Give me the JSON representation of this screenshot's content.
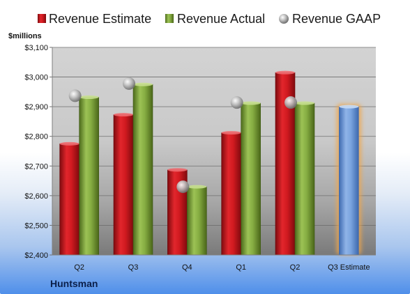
{
  "chart_data": {
    "type": "bar",
    "title": "",
    "unit_label": "$millions",
    "company": "Huntsman",
    "categories": [
      "Q2",
      "Q3",
      "Q4",
      "Q1",
      "Q2",
      "Q3 Estimate"
    ],
    "series": [
      {
        "name": "Revenue Estimate",
        "color": "#c0181e",
        "values": [
          2775,
          2873,
          2687,
          2812,
          3015,
          null
        ]
      },
      {
        "name": "Revenue Actual",
        "color": "#7da03a",
        "values": [
          2932,
          2975,
          2630,
          2912,
          2912,
          null
        ]
      },
      {
        "name": "Revenue GAAP",
        "color": "#a8a8a8",
        "marker": "sphere",
        "values": [
          2937,
          2978,
          2630,
          2914,
          2914,
          null
        ]
      }
    ],
    "projection": {
      "category": "Q3 Estimate",
      "value": 2900,
      "color": "#6f9ad6",
      "glow_color": "#f0a64a"
    },
    "ylim": [
      2400,
      3100
    ],
    "yticks": [
      2400,
      2500,
      2600,
      2700,
      2800,
      2900,
      3000,
      3100
    ],
    "ytick_labels": [
      "$2,400",
      "$2,500",
      "$2,600",
      "$2,700",
      "$2,800",
      "$2,900",
      "$3,000",
      "$3,100"
    ],
    "grid": true,
    "legend_position": "top"
  }
}
